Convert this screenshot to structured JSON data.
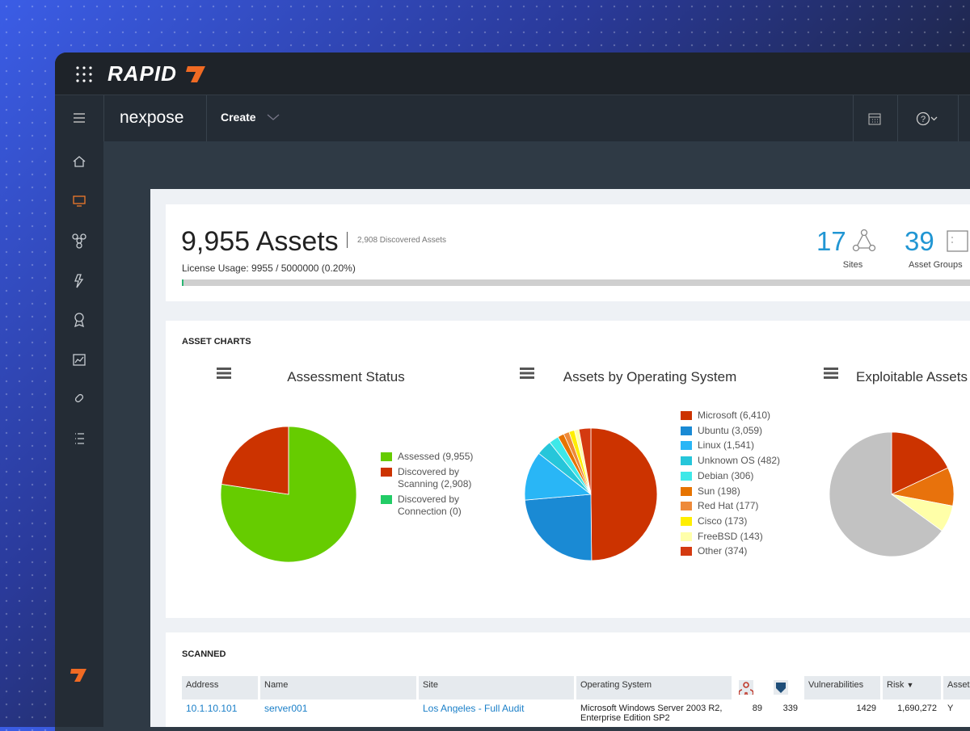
{
  "brand": "RAPID",
  "product": "nexpose",
  "nav": {
    "create": "Create"
  },
  "summary": {
    "assets": "9,955 Assets",
    "discovered": "2,908 Discovered Assets",
    "license": "License Usage: 9955 / 5000000 (0.20%)",
    "license_usage_pct": 0.2,
    "sites_count": "17",
    "sites_label": "Sites",
    "groups_count": "39",
    "groups_label": "Asset Groups"
  },
  "asset_charts": {
    "heading": "ASSET CHARTS",
    "charts": [
      {
        "type": "pie",
        "title": "Assessment Status",
        "categories": [
          "Assessed (9,955)",
          "Discovered by Scanning (2,908)",
          "Discovered by Connection (0)"
        ],
        "values": [
          9955,
          2908,
          0
        ],
        "colors": [
          "#66cc00",
          "#cc3300",
          "#22cc66"
        ]
      },
      {
        "type": "pie",
        "title": "Assets by Operating System",
        "categories": [
          "Microsoft (6,410)",
          "Ubuntu (3,059)",
          "Linux (1,541)",
          "Unknown OS (482)",
          "Debian (306)",
          "Sun (198)",
          "Red Hat (177)",
          "Cisco (173)",
          "FreeBSD (143)",
          "Other (374)"
        ],
        "values": [
          6410,
          3059,
          1541,
          482,
          306,
          198,
          177,
          173,
          143,
          374
        ],
        "colors": [
          "#cc3300",
          "#1a8ad4",
          "#29b6f6",
          "#26c6da",
          "#3ee8e8",
          "#e67300",
          "#ee8a3a",
          "#ffee00",
          "#ffffaa",
          "#d43a10"
        ]
      },
      {
        "type": "pie",
        "title": "Exploitable Assets",
        "categories": [
          null,
          null,
          null,
          null
        ],
        "values": [
          18,
          10,
          7,
          65
        ],
        "colors": [
          "#cc3300",
          "#e8720c",
          "#ffffa8",
          "#c2c2c2"
        ]
      }
    ]
  },
  "scanned": {
    "heading": "SCANNED",
    "columns": [
      "Address",
      "Name",
      "Site",
      "Operating System",
      null,
      null,
      "Vulnerabilities",
      "Risk",
      "Assets"
    ],
    "rows": [
      [
        "10.1.10.101",
        "server001",
        "Los Angeles - Full Audit",
        "Microsoft Windows Server 2003 R2, Enterprise Edition SP2",
        "89",
        "339",
        "1429",
        "1,690,272",
        "Y"
      ]
    ]
  }
}
